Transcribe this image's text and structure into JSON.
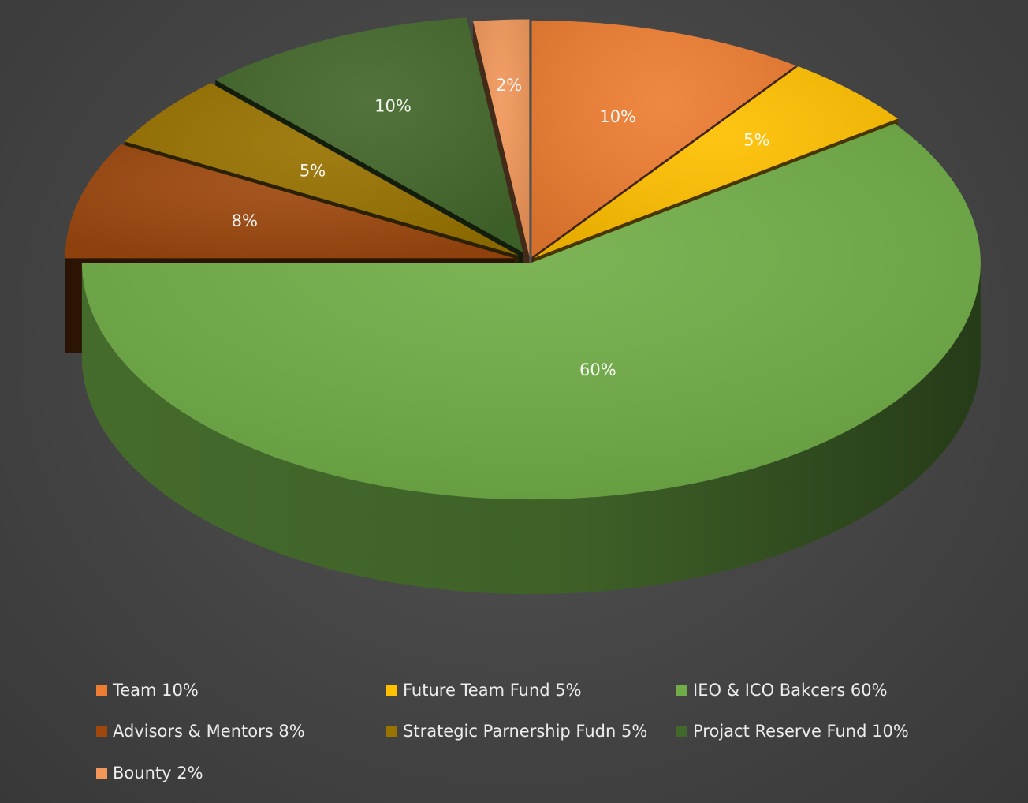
{
  "chart_data": {
    "type": "pie",
    "title": "",
    "three_d": true,
    "exploded": true,
    "data_labels": "percent",
    "legend_position": "bottom",
    "slices": [
      {
        "label": "Team 10%",
        "value": 10,
        "data_label": "10%",
        "color": "#ED7D31"
      },
      {
        "label": "Future Team Fund 5%",
        "value": 5,
        "data_label": "5%",
        "color": "#FFC000"
      },
      {
        "label": "IEO & ICO Bakcers 60%",
        "value": 60,
        "data_label": "60%",
        "color": "#70AD47"
      },
      {
        "label": "Advisors & Mentors 8%",
        "value": 8,
        "data_label": "8%",
        "color": "#9E480E"
      },
      {
        "label": "Strategic Parnership Fudn 5%",
        "value": 5,
        "data_label": "5%",
        "color": "#997300"
      },
      {
        "label": "Projact Reserve Fund 10%",
        "value": 10,
        "data_label": "10%",
        "color": "#43682B"
      },
      {
        "label": "Bounty 2%",
        "value": 2,
        "data_label": "2%",
        "color": "#F1975A"
      }
    ]
  }
}
